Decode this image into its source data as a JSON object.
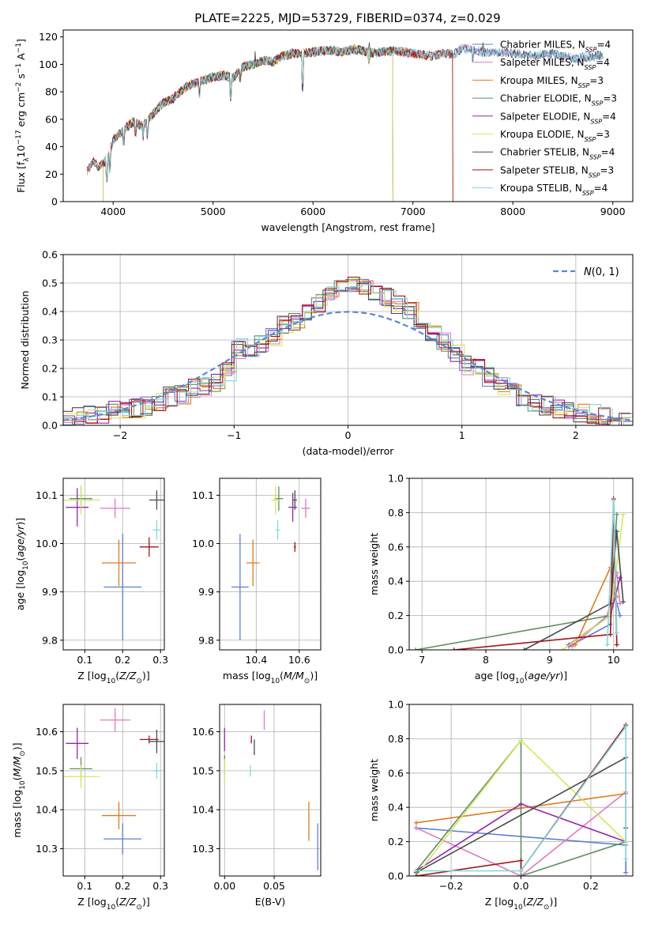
{
  "figure_title": "PLATE=2225, MJD=53729, FIBERID=0374, z=0.029",
  "colors": {
    "Chabrier MILES": "#5b7fd6",
    "Salpeter MILES": "#e377c2",
    "Kroupa MILES": "#e07b1c",
    "Chabrier ELODIE": "#5f8f5f",
    "Salpeter ELODIE": "#9426b0",
    "Kroupa ELODIE": "#d4e85a",
    "Chabrier STELIB": "#4a4a4a",
    "Salpeter STELIB": "#a31515",
    "Kroupa STELIB": "#7fd8dd",
    "gaussian": "#5b87d6"
  },
  "chart_data": [
    {
      "id": "spectrum",
      "type": "line",
      "title": "PLATE=2225, MJD=53729, FIBERID=0374, z=0.029",
      "xlabel": "wavelength [Angstrom, rest frame]",
      "ylabel": "Flux [f$_\\lambda$10$^{-17}$ erg cm$^{-2}$ s$^{-1}$ A$^{-1}$]",
      "ylabel_parts": [
        "Flux [f",
        "λ",
        "10",
        "−17",
        " erg cm",
        "−2",
        " s",
        "−1",
        " A",
        "−1",
        "]"
      ],
      "xlim": [
        3500,
        9200
      ],
      "ylim": [
        0,
        125
      ],
      "xticks": [
        4000,
        5000,
        6000,
        7000,
        8000,
        9000
      ],
      "yticks": [
        0,
        20,
        40,
        60,
        80,
        100,
        120
      ],
      "legend_loc": "right",
      "legend": [
        {
          "model": "Chabrier MILES",
          "n": "4"
        },
        {
          "model": "Salpeter MILES",
          "n": "4"
        },
        {
          "model": "Kroupa MILES",
          "n": "3"
        },
        {
          "model": "Chabrier ELODIE",
          "n": "3"
        },
        {
          "model": "Salpeter ELODIE",
          "n": "4"
        },
        {
          "model": "Kroupa ELODIE",
          "n": "3"
        },
        {
          "model": "Chabrier STELIB",
          "n": "4"
        },
        {
          "model": "Salpeter STELIB",
          "n": "3"
        },
        {
          "model": "Kroupa STELIB",
          "n": "4"
        }
      ],
      "legend_n_label": "N",
      "legend_n_sub": "SSP",
      "continuum": {
        "x": [
          3740,
          3800,
          3850,
          3900,
          3950,
          4000,
          4100,
          4200,
          4300,
          4400,
          4500,
          4600,
          4700,
          4800,
          4900,
          5000,
          5100,
          5200,
          5300,
          5400,
          5500,
          5600,
          5700,
          5800,
          5900,
          6000,
          6100,
          6200,
          6300,
          6400,
          6500,
          6600,
          6700,
          6800,
          6900,
          7000,
          7100,
          7200,
          7300,
          7400,
          7500,
          7600,
          7700,
          7800,
          7900,
          8000,
          8100,
          8200,
          8300,
          8400,
          8500,
          8600,
          8700,
          8800,
          8900
        ],
        "y": [
          22,
          30,
          25,
          28,
          32,
          45,
          52,
          58,
          55,
          64,
          72,
          75,
          82,
          86,
          88,
          91,
          92,
          90,
          98,
          100,
          103,
          102,
          106,
          108,
          108,
          109,
          110,
          110,
          109,
          111,
          110,
          108,
          109,
          110,
          109,
          108,
          107,
          106,
          108,
          107,
          112,
          110,
          109,
          108,
          109,
          108,
          107,
          106,
          107,
          108,
          106,
          104,
          105,
          106,
          107
        ]
      },
      "model_ranges": [
        {
          "model": "Chabrier MILES",
          "x": [
            3740,
            8900
          ]
        },
        {
          "model": "Salpeter MILES",
          "x": [
            3740,
            8900
          ]
        },
        {
          "model": "Kroupa MILES",
          "x": [
            3740,
            7400
          ]
        },
        {
          "model": "Chabrier ELODIE",
          "x": [
            3900,
            6800
          ]
        },
        {
          "model": "Salpeter ELODIE",
          "x": [
            3900,
            6800
          ]
        },
        {
          "model": "Kroupa ELODIE",
          "x": [
            3900,
            6800
          ]
        },
        {
          "model": "Chabrier STELIB",
          "x": [
            3740,
            8900
          ]
        },
        {
          "model": "Salpeter STELIB",
          "x": [
            3740,
            7400
          ]
        },
        {
          "model": "Kroupa STELIB",
          "x": [
            3740,
            8900
          ]
        }
      ]
    },
    {
      "id": "residuals",
      "type": "histogram",
      "xlabel": "(data-model)/error",
      "ylabel": "Normed distribution",
      "xlim": [
        -2.5,
        2.5
      ],
      "ylim": [
        0,
        0.6
      ],
      "xticks": [
        -2,
        -1,
        0,
        1,
        2
      ],
      "yticks": [
        0.0,
        0.1,
        0.2,
        0.3,
        0.4,
        0.5,
        0.6
      ],
      "grid": true,
      "legend_loc": "top-right",
      "legend": [
        "N(0,1)"
      ],
      "bin_width": 0.1,
      "bin_start": -2.5,
      "mean_heights": [
        0.02,
        0.03,
        0.04,
        0.04,
        0.05,
        0.05,
        0.06,
        0.07,
        0.08,
        0.1,
        0.11,
        0.13,
        0.14,
        0.15,
        0.19,
        0.27,
        0.26,
        0.29,
        0.31,
        0.35,
        0.36,
        0.39,
        0.43,
        0.47,
        0.5,
        0.49,
        0.48,
        0.47,
        0.45,
        0.42,
        0.4,
        0.37,
        0.33,
        0.29,
        0.25,
        0.21,
        0.2,
        0.17,
        0.14,
        0.12,
        0.1,
        0.08,
        0.07,
        0.06,
        0.05,
        0.04,
        0.04,
        0.03,
        0.03,
        0.02
      ]
    },
    {
      "id": "age-vs-Z",
      "type": "scatter",
      "xlabel": "Z [log$_{10}$($Z/Z_\\odot$)]",
      "ylabel": "age  [log$_{10}$($age/yr$)]",
      "xlim": [
        0.043,
        0.31
      ],
      "ylim": [
        9.78,
        10.135
      ],
      "xticks": [
        0.1,
        0.2,
        0.3
      ],
      "yticks": [
        9.8,
        9.9,
        10.0,
        10.1
      ],
      "grid": true,
      "points": [
        {
          "model": "Chabrier MILES",
          "x": 0.2,
          "y": 9.91,
          "xerr": 0.05,
          "yerr": 0.11
        },
        {
          "model": "Salpeter MILES",
          "x": 0.18,
          "y": 10.073,
          "xerr": 0.04,
          "yerr": 0.02
        },
        {
          "model": "Kroupa MILES",
          "x": 0.19,
          "y": 9.96,
          "xerr": 0.045,
          "yerr": 0.048
        },
        {
          "model": "Chabrier ELODIE",
          "x": 0.09,
          "y": 10.093,
          "xerr": 0.03,
          "yerr": 0.025
        },
        {
          "model": "Salpeter ELODIE",
          "x": 0.08,
          "y": 10.075,
          "xerr": 0.03,
          "yerr": 0.04
        },
        {
          "model": "Kroupa ELODIE",
          "x": 0.09,
          "y": 10.09,
          "xerr": 0.05,
          "yerr": 0.03
        },
        {
          "model": "Chabrier STELIB",
          "x": 0.29,
          "y": 10.09,
          "xerr": 0.02,
          "yerr": 0.02
        },
        {
          "model": "Salpeter STELIB",
          "x": 0.27,
          "y": 9.993,
          "xerr": 0.025,
          "yerr": 0.02
        },
        {
          "model": "Kroupa STELIB",
          "x": 0.29,
          "y": 10.028,
          "xerr": 0.01,
          "yerr": 0.02
        }
      ]
    },
    {
      "id": "age-vs-mass",
      "type": "scatter",
      "xlabel": "mass [log$_{10}$($M/M_\\odot$)]",
      "ylabel": "",
      "xlim": [
        10.23,
        10.7
      ],
      "ylim": [
        9.78,
        10.135
      ],
      "xticks": [
        10.4,
        10.6
      ],
      "yticks": [
        9.8,
        9.9,
        10.0,
        10.1
      ],
      "grid": true,
      "points": [
        {
          "model": "Chabrier MILES",
          "x": 10.325,
          "y": 9.91,
          "xerr": 0.04,
          "yerr": 0.11
        },
        {
          "model": "Salpeter MILES",
          "x": 10.63,
          "y": 10.073,
          "xerr": 0.02,
          "yerr": 0.02
        },
        {
          "model": "Kroupa MILES",
          "x": 10.385,
          "y": 9.96,
          "xerr": 0.03,
          "yerr": 0.048
        },
        {
          "model": "Chabrier ELODIE",
          "x": 10.505,
          "y": 10.093,
          "xerr": 0.02,
          "yerr": 0.025
        },
        {
          "model": "Salpeter ELODIE",
          "x": 10.57,
          "y": 10.075,
          "xerr": 0.02,
          "yerr": 0.03
        },
        {
          "model": "Kroupa ELODIE",
          "x": 10.49,
          "y": 10.09,
          "xerr": 0.02,
          "yerr": 0.03
        },
        {
          "model": "Chabrier STELIB",
          "x": 10.58,
          "y": 10.09,
          "xerr": 0.01,
          "yerr": 0.02
        },
        {
          "model": "Salpeter STELIB",
          "x": 10.58,
          "y": 9.993,
          "xerr": 0.005,
          "yerr": 0.01
        },
        {
          "model": "Kroupa STELIB",
          "x": 10.5,
          "y": 10.028,
          "xerr": 0.01,
          "yerr": 0.02
        }
      ]
    },
    {
      "id": "mass-weight-vs-age",
      "type": "line",
      "xlabel": "age  [log$_{10}$($age/yr$)]",
      "ylabel": "mass weight",
      "xlim": [
        6.8,
        10.3
      ],
      "ylim": [
        0,
        1
      ],
      "xticks": [
        7,
        8,
        9,
        10
      ],
      "yticks": [
        0.0,
        0.2,
        0.4,
        0.6,
        0.8,
        1.0
      ],
      "grid": true,
      "series": [
        {
          "model": "Chabrier MILES",
          "x": [
            9.3,
            9.95,
            10.0,
            10.1
          ],
          "y": [
            0.02,
            0.15,
            0.35,
            0.2
          ]
        },
        {
          "model": "Salpeter MILES",
          "x": [
            9.35,
            9.9,
            10.05,
            10.1
          ],
          "y": [
            0.02,
            0.2,
            0.45,
            0.27
          ]
        },
        {
          "model": "Kroupa MILES",
          "x": [
            9.4,
            9.95,
            10.05
          ],
          "y": [
            0.03,
            0.48,
            0.31
          ]
        },
        {
          "model": "Chabrier ELODIE",
          "x": [
            6.9,
            9.95,
            10.05
          ],
          "y": [
            0.0,
            0.2,
            0.79
          ]
        },
        {
          "model": "Salpeter ELODIE",
          "x": [
            9.3,
            9.95,
            10.1
          ],
          "y": [
            0.03,
            0.2,
            0.42
          ]
        },
        {
          "model": "Kroupa ELODIE",
          "x": [
            9.2,
            9.95,
            10.15
          ],
          "y": [
            0.0,
            0.2,
            0.79
          ]
        },
        {
          "model": "Chabrier STELIB",
          "x": [
            8.6,
            9.95,
            10.05,
            10.15
          ],
          "y": [
            0.0,
            0.27,
            0.69,
            0.28
          ]
        },
        {
          "model": "Salpeter STELIB",
          "x": [
            7.5,
            9.95,
            10.0,
            10.05
          ],
          "y": [
            0.0,
            0.09,
            0.88,
            0.03
          ]
        },
        {
          "model": "Kroupa STELIB",
          "x": [
            9.9,
            10.0,
            10.05
          ],
          "y": [
            0.03,
            0.87,
            0.1
          ]
        }
      ]
    },
    {
      "id": "mass-vs-Z",
      "type": "scatter",
      "xlabel": "Z [log$_{10}$($Z/Z_\\odot$)]",
      "ylabel": "mass [log$_{10}$($M/M_\\odot$)]",
      "xlim": [
        0.043,
        0.31
      ],
      "ylim": [
        10.23,
        10.67
      ],
      "xticks": [
        0.1,
        0.2,
        0.3
      ],
      "yticks": [
        10.3,
        10.4,
        10.5,
        10.6
      ],
      "grid": true,
      "points": [
        {
          "model": "Chabrier MILES",
          "x": 0.2,
          "y": 10.325,
          "xerr": 0.05,
          "yerr": 0.04
        },
        {
          "model": "Salpeter MILES",
          "x": 0.18,
          "y": 10.63,
          "xerr": 0.04,
          "yerr": 0.03
        },
        {
          "model": "Kroupa MILES",
          "x": 0.19,
          "y": 10.385,
          "xerr": 0.045,
          "yerr": 0.035
        },
        {
          "model": "Chabrier ELODIE",
          "x": 0.09,
          "y": 10.505,
          "xerr": 0.03,
          "yerr": 0.03
        },
        {
          "model": "Salpeter ELODIE",
          "x": 0.08,
          "y": 10.57,
          "xerr": 0.03,
          "yerr": 0.04
        },
        {
          "model": "Kroupa ELODIE",
          "x": 0.09,
          "y": 10.485,
          "xerr": 0.05,
          "yerr": 0.03
        },
        {
          "model": "Chabrier STELIB",
          "x": 0.29,
          "y": 10.575,
          "xerr": 0.02,
          "yerr": 0.03
        },
        {
          "model": "Salpeter STELIB",
          "x": 0.27,
          "y": 10.58,
          "xerr": 0.025,
          "yerr": 0.01
        },
        {
          "model": "Kroupa STELIB",
          "x": 0.29,
          "y": 10.5,
          "xerr": 0.01,
          "yerr": 0.02
        }
      ]
    },
    {
      "id": "mass-vs-ebv",
      "type": "scatter",
      "xlabel": "E(B-V)",
      "ylabel": "",
      "xlim": [
        -0.005,
        0.097
      ],
      "ylim": [
        10.23,
        10.67
      ],
      "xticks": [
        0.0,
        0.05
      ],
      "yticks": [
        10.3,
        10.4,
        10.5,
        10.6
      ],
      "grid": true,
      "points": [
        {
          "model": "Chabrier MILES",
          "x": 0.094,
          "y": 10.305,
          "xerr": 0.0,
          "yerr": 0.06
        },
        {
          "model": "Salpeter MILES",
          "x": 0.04,
          "y": 10.63,
          "xerr": 0.0,
          "yerr": 0.025
        },
        {
          "model": "Kroupa MILES",
          "x": 0.085,
          "y": 10.37,
          "xerr": 0.0,
          "yerr": 0.05
        },
        {
          "model": "Chabrier ELODIE",
          "x": 0.0,
          "y": 10.51,
          "xerr": 0.0,
          "yerr": 0.03
        },
        {
          "model": "Salpeter ELODIE",
          "x": 0.0,
          "y": 10.58,
          "xerr": 0.0,
          "yerr": 0.03
        },
        {
          "model": "Kroupa ELODIE",
          "x": 0.0,
          "y": 10.5,
          "xerr": 0.0,
          "yerr": 0.03
        },
        {
          "model": "Chabrier STELIB",
          "x": 0.03,
          "y": 10.56,
          "xerr": 0.0,
          "yerr": 0.02
        },
        {
          "model": "Salpeter STELIB",
          "x": 0.027,
          "y": 10.58,
          "xerr": 0.0,
          "yerr": 0.01
        },
        {
          "model": "Kroupa STELIB",
          "x": 0.026,
          "y": 10.5,
          "xerr": 0.0,
          "yerr": 0.015
        }
      ]
    },
    {
      "id": "mass-weight-vs-Z",
      "type": "line",
      "xlabel": "Z [log$_{10}$($Z/Z_\\odot$)]",
      "ylabel": "mass weight",
      "xlim": [
        -0.32,
        0.32
      ],
      "ylim": [
        0,
        1
      ],
      "xticks": [
        -0.2,
        0.0,
        0.2
      ],
      "yticks": [
        0.0,
        0.2,
        0.4,
        0.6,
        0.8,
        1.0
      ],
      "grid": true,
      "series": [
        {
          "model": "Chabrier MILES",
          "x": [
            -0.3,
            0.3,
            0.3
          ],
          "y": [
            0.28,
            0.18,
            0.02
          ]
        },
        {
          "model": "Salpeter MILES",
          "x": [
            -0.3,
            0.0,
            0.3,
            0.3
          ],
          "y": [
            0.28,
            0.0,
            0.49,
            0.2
          ]
        },
        {
          "model": "Kroupa MILES",
          "x": [
            -0.3,
            0.3
          ],
          "y": [
            0.31,
            0.48
          ]
        },
        {
          "model": "Chabrier ELODIE",
          "x": [
            -0.3,
            0.0,
            0.0,
            0.3
          ],
          "y": [
            0.03,
            0.79,
            0.0,
            0.2
          ]
        },
        {
          "model": "Salpeter ELODIE",
          "x": [
            -0.3,
            0.0,
            0.3
          ],
          "y": [
            0.03,
            0.42,
            0.2
          ]
        },
        {
          "model": "Kroupa ELODIE",
          "x": [
            -0.3,
            0.0,
            0.3
          ],
          "y": [
            0.0,
            0.79,
            0.2
          ]
        },
        {
          "model": "Chabrier STELIB",
          "x": [
            -0.3,
            0.3,
            0.3
          ],
          "y": [
            0.02,
            0.69,
            0.28
          ]
        },
        {
          "model": "Salpeter STELIB",
          "x": [
            -0.3,
            0.0,
            0.0,
            0.3
          ],
          "y": [
            0.0,
            0.09,
            0.03,
            0.88
          ]
        },
        {
          "model": "Kroupa STELIB",
          "x": [
            -0.3,
            0.0,
            0.3,
            0.3
          ],
          "y": [
            0.03,
            0.03,
            0.87,
            0.1
          ]
        }
      ]
    }
  ]
}
